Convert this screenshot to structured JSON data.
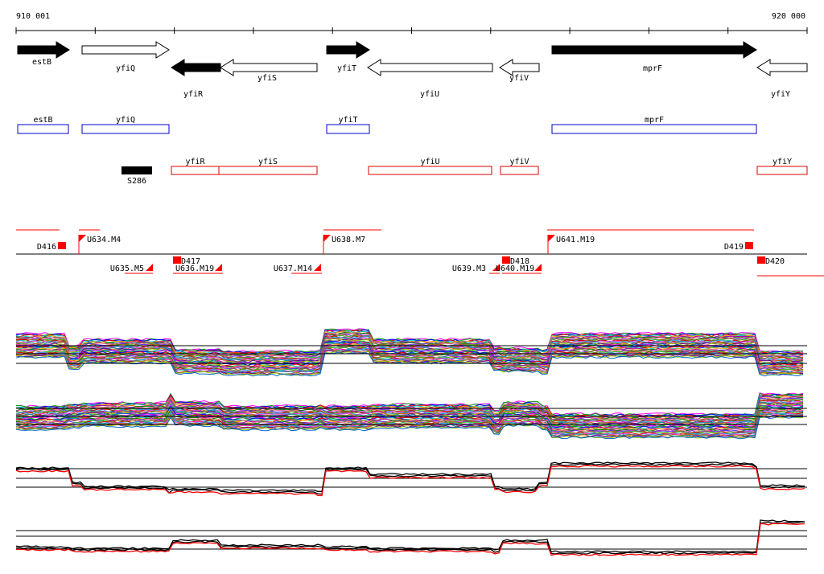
{
  "scale": {
    "start_label": "910 001",
    "end_label": "920 000"
  },
  "genes": [
    {
      "name": "estB",
      "dir": "right",
      "filled": true
    },
    {
      "name": "yfiQ",
      "dir": "right",
      "filled": false
    },
    {
      "name": "yfiR",
      "dir": "left",
      "filled": true
    },
    {
      "name": "yfiS",
      "dir": "left",
      "filled": false
    },
    {
      "name": "yfiT",
      "dir": "right",
      "filled": true
    },
    {
      "name": "yfiU",
      "dir": "left",
      "filled": false
    },
    {
      "name": "yfiV",
      "dir": "left",
      "filled": false
    },
    {
      "name": "mprF",
      "dir": "right",
      "filled": true
    },
    {
      "name": "yfiY",
      "dir": "left",
      "filled": false
    }
  ],
  "plus_boxes": [
    "estB",
    "yfiQ",
    "yfiT",
    "mprF"
  ],
  "minus_boxes": [
    "yfiR",
    "yfiS",
    "yfiU",
    "yfiV",
    "yfiY"
  ],
  "feature": {
    "name": "S286"
  },
  "segments_upper": [
    "D416",
    "U634.M4",
    "U638.M7",
    "U641.M19",
    "D419"
  ],
  "segments_lower": [
    "U635.M5",
    "D417",
    "U636.M19",
    "U637.M14",
    "U639.M3",
    "D418",
    "U640.M19",
    "D420"
  ],
  "colors": {
    "gene_fill": "#000000",
    "plus_box": "#0000cc",
    "minus_box": "#dd0000",
    "segment": "#ff0000",
    "mean_a": "#000000",
    "mean_b": "#ff0000"
  }
}
